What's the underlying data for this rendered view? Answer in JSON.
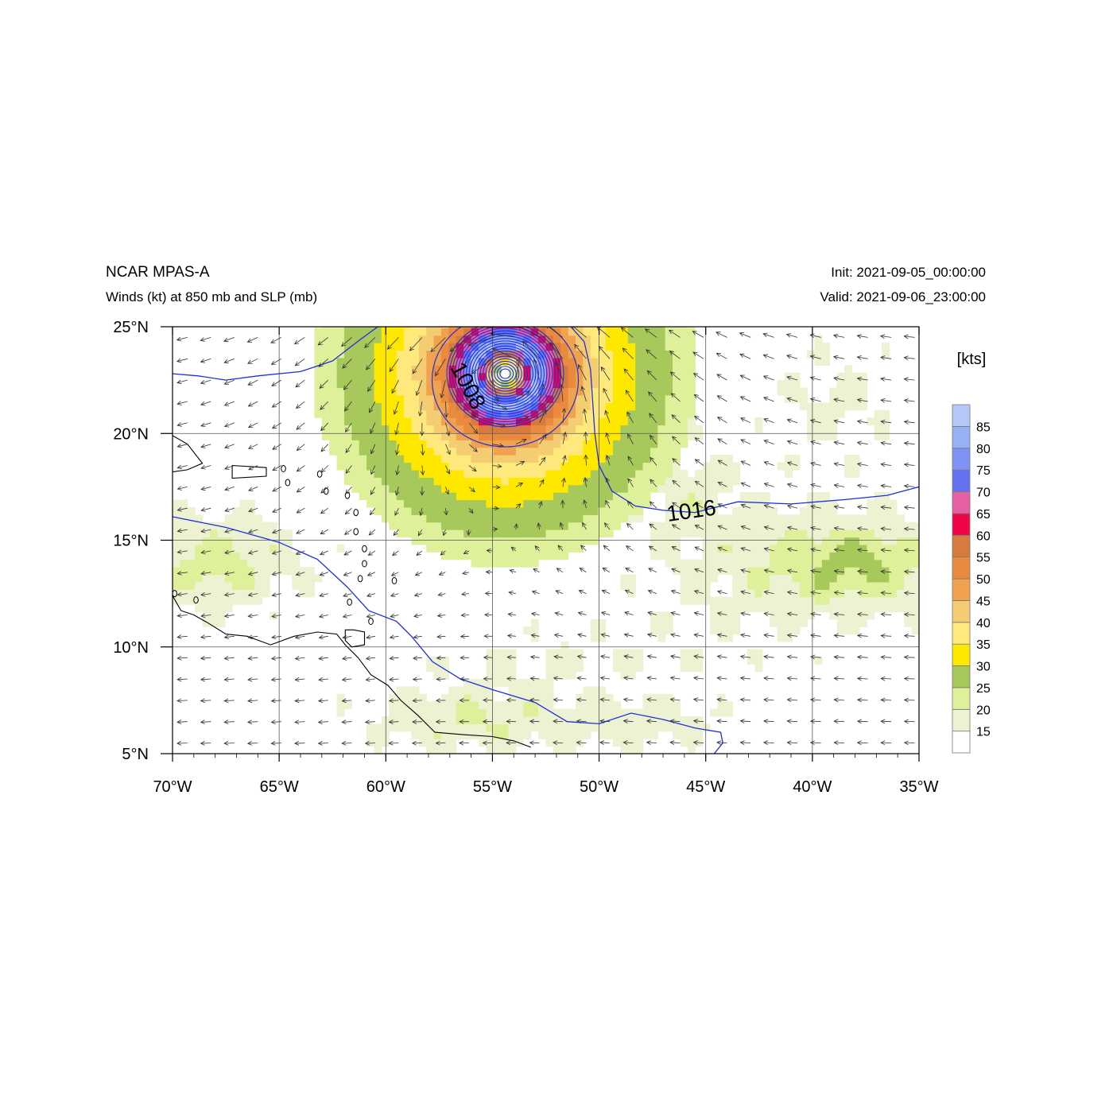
{
  "header": {
    "title": "NCAR MPAS-A",
    "subtitle": "Winds (kt) at 850 mb and SLP (mb)",
    "init": "Init: 2021-09-05_00:00:00",
    "valid": "Valid: 2021-09-06_23:00:00"
  },
  "map": {
    "lon_range": [
      -70,
      -35
    ],
    "lat_range": [
      5,
      25
    ],
    "lon_ticks": [
      "70°W",
      "65°W",
      "60°W",
      "55°W",
      "50°W",
      "45°W",
      "40°W",
      "35°W"
    ],
    "lat_ticks": [
      "25°N",
      "20°N",
      "15°N",
      "10°N",
      "5°N"
    ],
    "grid": true
  },
  "colorbar": {
    "unit": "[kts]",
    "levels": [
      "15",
      "20",
      "25",
      "30",
      "35",
      "40",
      "45",
      "50",
      "55",
      "60",
      "65",
      "70",
      "75",
      "80",
      "85"
    ],
    "colors": [
      "#ffffff",
      "#ecf2d2",
      "#dff09a",
      "#a7c95c",
      "#ffe800",
      "#ffe97d",
      "#f4cd73",
      "#f0a24e",
      "#e98a3f",
      "#d77a3d",
      "#ef0546",
      "#e75fa3",
      "#6272f0",
      "#7d93f5",
      "#96b2f6",
      "#b5c8f7"
    ]
  },
  "contours": {
    "slp_labels": [
      "1008",
      "1016"
    ],
    "color": "#1f2fe0"
  },
  "storm_center": {
    "lon": -54.4,
    "lat": 22.8
  }
}
